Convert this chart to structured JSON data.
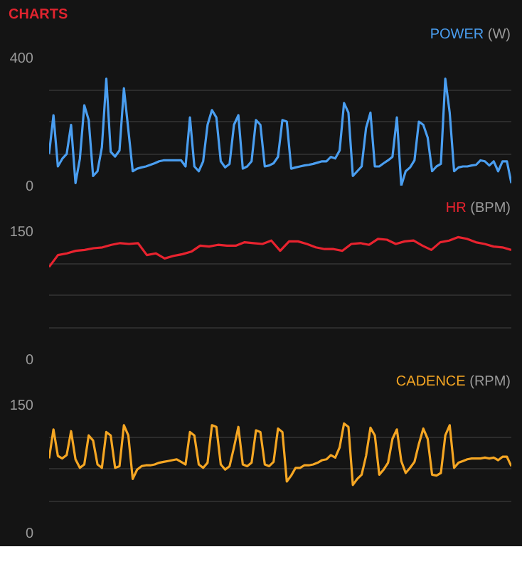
{
  "chart_data": [
    {
      "type": "line",
      "title": "CHARTS",
      "ylabel": "(W)",
      "tick_labels": "y",
      "grid": "y",
      "categories": [
        null,
        null,
        null,
        null,
        null,
        null,
        null,
        null,
        null,
        null,
        null,
        null,
        null,
        null,
        null,
        null,
        null,
        null,
        null,
        null,
        null,
        null,
        null,
        null,
        null,
        null,
        null,
        null,
        null,
        null,
        null,
        null,
        null,
        null,
        null,
        null,
        null,
        null,
        null,
        null,
        null,
        null,
        null,
        null,
        null,
        null,
        null,
        null,
        null,
        null,
        null,
        null,
        null,
        null,
        null,
        null,
        null,
        null,
        null,
        null,
        null,
        null,
        null,
        null,
        null,
        null,
        null,
        null,
        null,
        null,
        null,
        null,
        null,
        null,
        null,
        null,
        null,
        null,
        null,
        null,
        null,
        null,
        null,
        null,
        null,
        null,
        null,
        null,
        null,
        null,
        null,
        null,
        null,
        null,
        null,
        null,
        null,
        null,
        null,
        null,
        null,
        null,
        null,
        null,
        null,
        null
      ],
      "ylim": [
        0,
        400
      ],
      "yticks": [
        0,
        {
          "value": 100,
          "label": null
        },
        {
          "value": 200,
          "label": null
        },
        {
          "value": 300,
          "label": null
        },
        400
      ],
      "series": [
        {
          "name": "POWER",
          "color": "#4a9ef0",
          "values": [
            99,
            220,
            60,
            84,
            99,
            190,
            8,
            84,
            251,
            205,
            30,
            45,
            120,
            334,
            106,
            91,
            110,
            304,
            175,
            45,
            53,
            57,
            60,
            65,
            70,
            76,
            79,
            79,
            79,
            79,
            79,
            60,
            213,
            60,
            45,
            76,
            190,
            236,
            213,
            76,
            57,
            68,
            190,
            220,
            53,
            60,
            76,
            205,
            190,
            60,
            63,
            70,
            90,
            205,
            200,
            53,
            57,
            60,
            63,
            65,
            68,
            72,
            76,
            76,
            90,
            85,
            110,
            258,
            228,
            30,
            45,
            60,
            180,
            228,
            60,
            60,
            70,
            79,
            90,
            213,
            0,
            45,
            57,
            79,
            200,
            190,
            150,
            45,
            60,
            68,
            334,
            228,
            45,
            57,
            60,
            60,
            63,
            65,
            79,
            76,
            63,
            76,
            45,
            76,
            76,
            8
          ]
        }
      ]
    },
    {
      "type": "line",
      "ylabel": "(BPM)",
      "tick_labels": "y",
      "grid": "y",
      "categories": [
        null,
        null,
        null,
        null,
        null,
        null,
        null,
        null,
        null,
        null,
        null,
        null,
        null,
        null,
        null,
        null,
        null,
        null,
        null,
        null,
        null,
        null,
        null,
        null,
        null,
        null,
        null,
        null,
        null,
        null,
        null,
        null,
        null,
        null,
        null,
        null,
        null,
        null,
        null,
        null,
        null,
        null,
        null,
        null,
        null,
        null,
        null,
        null,
        null,
        null,
        null,
        null,
        null
      ],
      "ylim": [
        0,
        150
      ],
      "yticks": [
        0,
        {
          "value": 37.5,
          "label": null
        },
        {
          "value": 75,
          "label": null
        },
        {
          "value": 112.5,
          "label": null
        },
        150
      ],
      "series": [
        {
          "name": "HR",
          "color": "#e8232f",
          "values": [
            108,
            122,
            124,
            127,
            128,
            130,
            131,
            134,
            136,
            135,
            136,
            122,
            124,
            118,
            121,
            123,
            126,
            133,
            132,
            134,
            133,
            133,
            137,
            136,
            135,
            139,
            127,
            138,
            138,
            135,
            131,
            129,
            129,
            127,
            135,
            136,
            134,
            141,
            140,
            135,
            138,
            139,
            133,
            128,
            137,
            139,
            143,
            141,
            137,
            135,
            132,
            131,
            128
          ]
        }
      ]
    },
    {
      "type": "line",
      "ylabel": "(RPM)",
      "tick_labels": "y",
      "grid": "y",
      "categories": [
        null,
        null,
        null,
        null,
        null,
        null,
        null,
        null,
        null,
        null,
        null,
        null,
        null,
        null,
        null,
        null,
        null,
        null,
        null,
        null,
        null,
        null,
        null,
        null,
        null,
        null,
        null,
        null,
        null,
        null,
        null,
        null,
        null,
        null,
        null,
        null,
        null,
        null,
        null,
        null,
        null,
        null,
        null,
        null,
        null,
        null,
        null,
        null,
        null,
        null,
        null,
        null,
        null,
        null,
        null,
        null,
        null,
        null,
        null,
        null,
        null,
        null,
        null,
        null,
        null,
        null,
        null,
        null,
        null,
        null,
        null,
        null,
        null,
        null,
        null,
        null,
        null,
        null,
        null,
        null,
        null,
        null,
        null,
        null,
        null,
        null,
        null,
        null,
        null,
        null,
        null,
        null,
        null,
        null,
        null,
        null,
        null,
        null,
        null,
        null,
        null,
        null,
        null,
        null,
        null,
        null
      ],
      "ylim": [
        0,
        150
      ],
      "yticks": [
        0,
        {
          "value": 37.5,
          "label": null
        },
        {
          "value": 75,
          "label": null
        },
        {
          "value": 112.5,
          "label": null
        },
        150
      ],
      "series": [
        {
          "name": "CADENCE",
          "color": "#f5a623",
          "values": [
            87,
            121,
            90,
            87,
            91,
            119,
            86,
            76,
            80,
            114,
            108,
            80,
            76,
            118,
            114,
            76,
            78,
            126,
            114,
            63,
            74,
            78,
            79,
            79,
            80,
            82,
            83,
            84,
            85,
            86,
            83,
            80,
            118,
            114,
            80,
            76,
            82,
            126,
            124,
            80,
            74,
            78,
            100,
            124,
            80,
            78,
            82,
            120,
            118,
            80,
            78,
            83,
            122,
            118,
            60,
            67,
            76,
            76,
            79,
            79,
            80,
            82,
            85,
            86,
            91,
            88,
            100,
            128,
            124,
            56,
            63,
            68,
            90,
            123,
            114,
            68,
            74,
            82,
            110,
            121,
            84,
            70,
            76,
            83,
            104,
            122,
            110,
            68,
            67,
            70,
            114,
            126,
            76,
            82,
            84,
            86,
            87,
            87,
            87,
            88,
            87,
            88,
            85,
            89,
            89,
            78
          ]
        }
      ]
    }
  ]
}
